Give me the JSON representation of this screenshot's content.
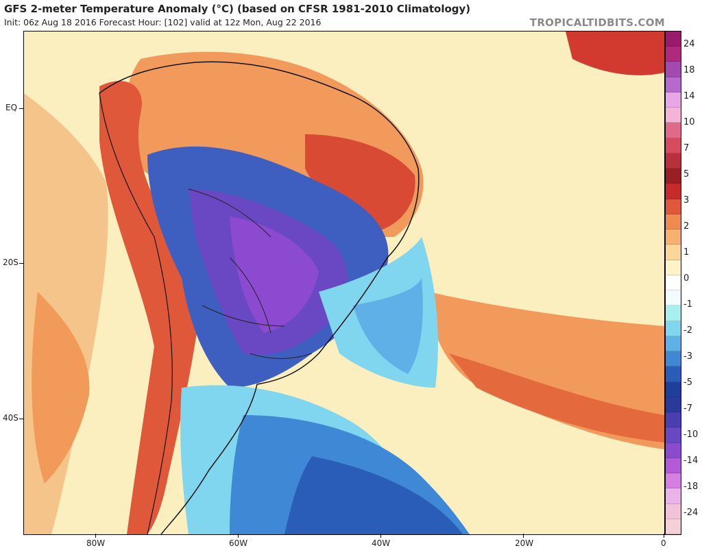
{
  "header": {
    "title": "GFS 2-meter Temperature Anomaly (°C) (based on CFSR 1981-2010 Climatology)",
    "subtitle": "Init: 06z Aug 18 2016   Forecast Hour: [102]   valid at 12z Mon, Aug 22 2016",
    "brand": "TROPICALTIDBITS.COM"
  },
  "axes": {
    "lat_labels": [
      "EQ",
      "20S",
      "40S"
    ],
    "lon_labels": [
      "80W",
      "60W",
      "40W",
      "20W",
      "0"
    ]
  },
  "colorbar": {
    "labels": [
      "24",
      "18",
      "14",
      "10",
      "7",
      "5",
      "3",
      "2",
      "1",
      "0",
      "-1",
      "-2",
      "-3",
      "-5",
      "-7",
      "-10",
      "-14",
      "-18",
      "-24"
    ],
    "colors": [
      "#9a1b6e",
      "#b1287f",
      "#a24ab0",
      "#b66ad0",
      "#e7a6e6",
      "#f5b3d8",
      "#e06a8a",
      "#d84b5e",
      "#b8303b",
      "#9a1f25",
      "#c62a2a",
      "#e0583a",
      "#ef8a50",
      "#f6b070",
      "#fbd69a",
      "#fdf3c6",
      "#ffffff",
      "#f4fbff",
      "#a8f0f0",
      "#7fd6ee",
      "#5fb0e6",
      "#3f88d6",
      "#2a5db8",
      "#1f3f9a",
      "#2a3a9a",
      "#4a3fb0",
      "#6a48c4",
      "#8c4ad0",
      "#b45ad8",
      "#d77ee2",
      "#eab3ea",
      "#f2c2d8",
      "#f6d0d8"
    ]
  }
}
